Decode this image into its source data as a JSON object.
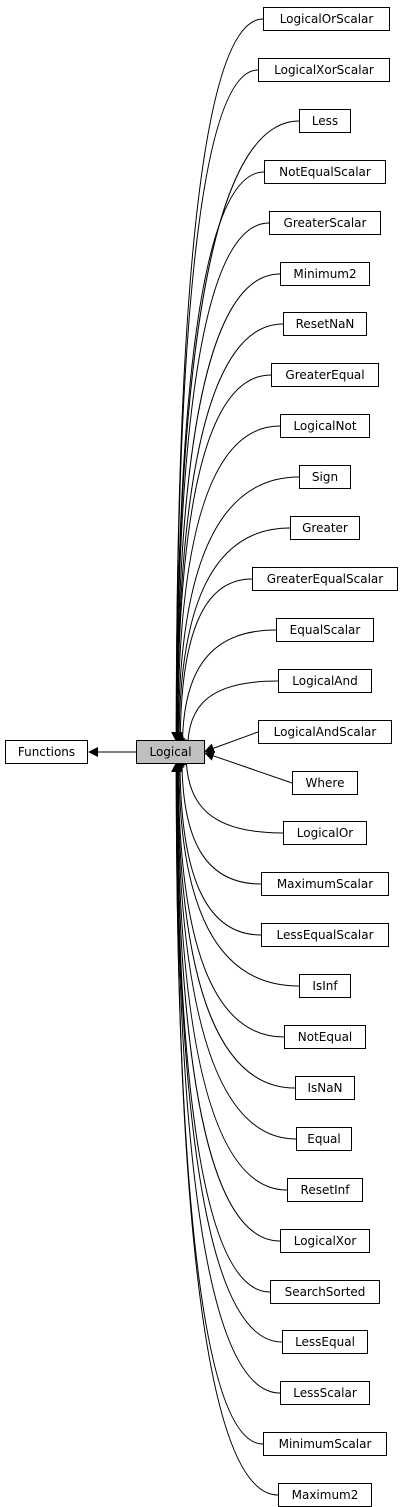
{
  "base": {
    "label": "Functions"
  },
  "current": {
    "label": "Logical"
  },
  "derived": [
    "LogicalOrScalar",
    "LogicalXorScalar",
    "Less",
    "NotEqualScalar",
    "GreaterScalar",
    "Minimum2",
    "ResetNaN",
    "GreaterEqual",
    "LogicalNot",
    "Sign",
    "Greater",
    "GreaterEqualScalar",
    "EqualScalar",
    "LogicalAnd",
    "LogicalAndScalar",
    "Where",
    "LogicalOr",
    "MaximumScalar",
    "LessEqualScalar",
    "IsInf",
    "NotEqual",
    "IsNaN",
    "Equal",
    "ResetInf",
    "LogicalXor",
    "SearchSorted",
    "LessEqual",
    "LessScalar",
    "MinimumScalar",
    "Maximum2"
  ]
}
